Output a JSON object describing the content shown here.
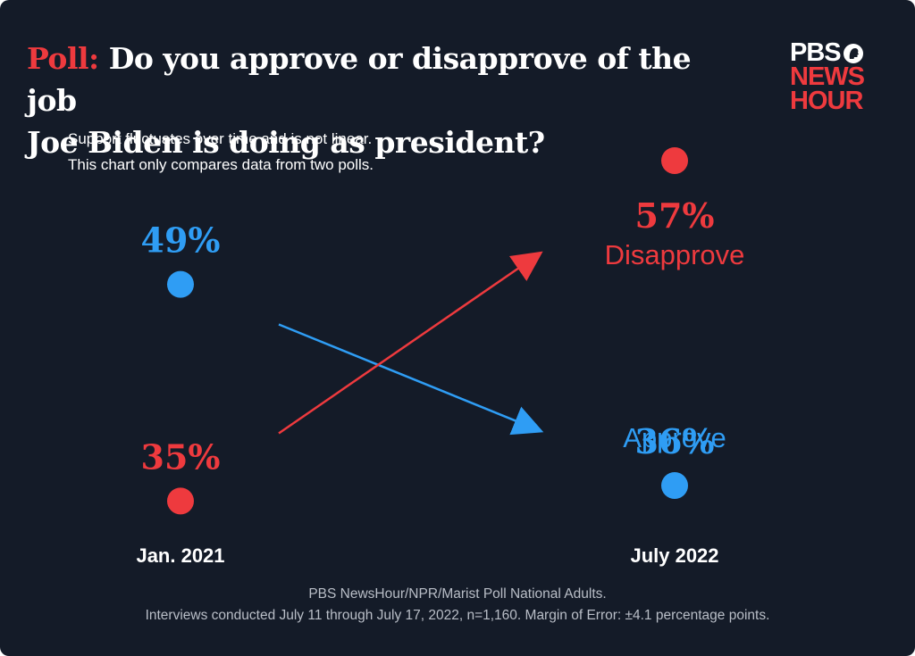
{
  "title": {
    "kicker": "Poll:",
    "line1": "Do you approve or disapprove of the job",
    "line2": "Joe Biden is doing as president?"
  },
  "subtitle": {
    "line1": "Support fluctuates over time and is not linear.",
    "line2": "This chart only compares data from two polls."
  },
  "logo": {
    "line1": "PBS",
    "line2": "NEWS",
    "line3": "HOUR"
  },
  "chart_data": {
    "type": "scatter",
    "categories": [
      "Jan. 2021",
      "July 2022"
    ],
    "series": [
      {
        "name": "Approve",
        "values": [
          49,
          36
        ],
        "labels": [
          "49%",
          "36%"
        ],
        "color": "#2f9df4"
      },
      {
        "name": "Disapprove",
        "values": [
          35,
          57
        ],
        "labels": [
          "35%",
          "57%"
        ],
        "color": "#ee3a3e"
      }
    ],
    "unit": "%"
  },
  "footer": {
    "source": "PBS NewsHour/NPR/Marist Poll National Adults.",
    "methodology": "Interviews conducted July 11 through July 17, 2022, n=1,160. Margin of Error: ±4.1 percentage points."
  }
}
